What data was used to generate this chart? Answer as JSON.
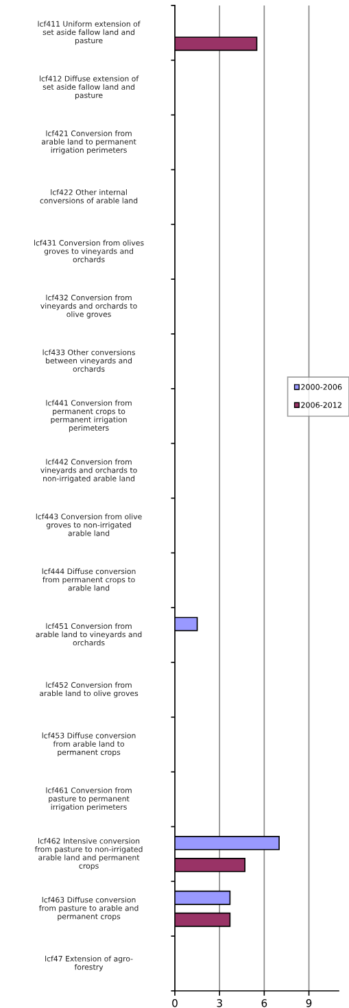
{
  "chart_data": {
    "type": "bar",
    "orientation": "horizontal",
    "categories": [
      "lcf411 Uniform extension of\nset aside fallow land and\npasture",
      "lcf412 Diffuse extension of\nset aside fallow land and\npasture",
      "lcf421 Conversion from\narable land to permanent\nirrigation perimeters",
      "lcf422 Other internal\nconversions of arable land",
      "lcf431 Conversion from olives\ngroves to vineyards and\norchards",
      "lcf432 Conversion from\nvineyards and orchards to\nolive groves",
      "lcf433 Other conversions\nbetween vineyards and\norchards",
      "lcf441 Conversion from\npermanent crops to\npermanent irrigation\nperimeters",
      "lcf442 Conversion from\nvineyards and orchards to\nnon-irrigated arable land",
      "lcf443 Conversion from olive\ngroves to non-irrigated\narable land",
      "lcf444 Diffuse conversion\nfrom permanent crops to\narable land",
      "lcf451 Conversion from\narable land to vineyards and\norchards",
      "lcf452 Conversion from\narable land to olive groves",
      "lcf453 Diffuse conversion\nfrom arable land to\npermanent crops",
      "lcf461 Conversion from\npasture to permanent\nirrigation perimeters",
      "lcf462 Intensive conversion\nfrom pasture to non-irrigated\narable land and permanent\ncrops",
      "lcf463 Diffuse conversion\nfrom pasture to arable and\npermanent crops",
      "lcf47 Extension of agro-\nforestry"
    ],
    "series": [
      {
        "name": "2000-2006",
        "color": "#9999ff",
        "values": [
          null,
          null,
          null,
          null,
          null,
          null,
          null,
          null,
          null,
          null,
          null,
          1.5,
          null,
          null,
          null,
          7.0,
          3.7,
          null
        ]
      },
      {
        "name": "2006-2012",
        "color": "#993366",
        "values": [
          5.5,
          null,
          null,
          null,
          null,
          null,
          null,
          null,
          null,
          null,
          null,
          null,
          null,
          null,
          null,
          4.7,
          3.7,
          null
        ]
      }
    ],
    "xlim": [
      0,
      11
    ],
    "xticks": [
      0,
      3,
      6,
      9
    ],
    "grid": "x",
    "legend": "right"
  }
}
